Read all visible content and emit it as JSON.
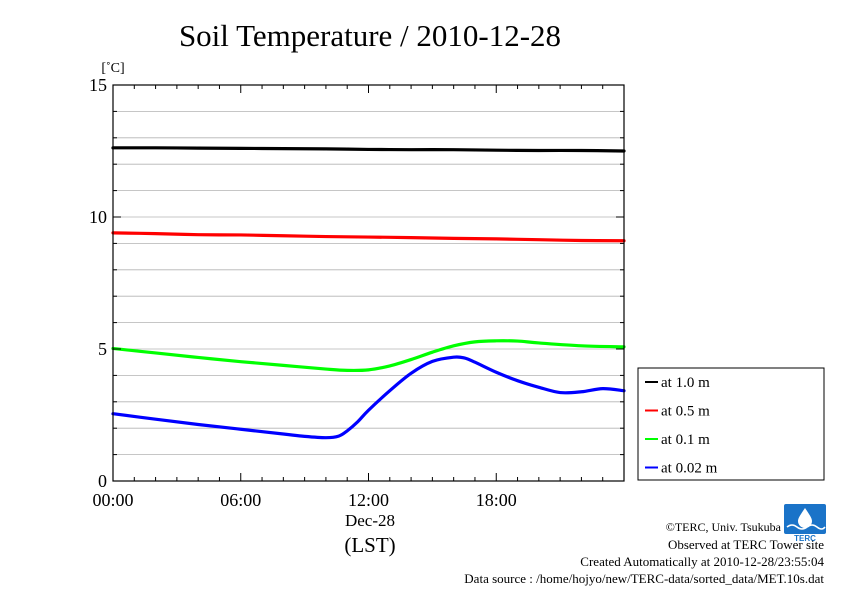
{
  "chart_data": {
    "type": "line",
    "title": "Soil Temperature / 2010-12-28",
    "ylabel": "[˚C]",
    "xlabel": "(LST)",
    "date_label": "Dec-28",
    "ylim": [
      0,
      15
    ],
    "xlim": [
      0,
      24
    ],
    "yticks": [
      0,
      5,
      10,
      15
    ],
    "xticks": [
      {
        "value": 0,
        "label": "00:00"
      },
      {
        "value": 6,
        "label": "06:00"
      },
      {
        "value": 12,
        "label": "12:00"
      },
      {
        "value": 18,
        "label": "18:00"
      }
    ],
    "grid": true,
    "legend_position": "right",
    "series": [
      {
        "name": "at 1.0 m",
        "color": "#000000",
        "x": [
          0,
          2,
          4,
          6,
          8,
          10,
          12,
          14,
          16,
          18,
          20,
          22,
          24
        ],
        "y": [
          12.62,
          12.62,
          12.61,
          12.6,
          12.59,
          12.58,
          12.56,
          12.55,
          12.55,
          12.53,
          12.52,
          12.52,
          12.5
        ]
      },
      {
        "name": "at 0.5 m",
        "color": "#ff0000",
        "x": [
          0,
          2,
          4,
          6,
          8,
          10,
          12,
          14,
          16,
          18,
          20,
          22,
          24
        ],
        "y": [
          9.4,
          9.37,
          9.33,
          9.32,
          9.29,
          9.26,
          9.24,
          9.22,
          9.19,
          9.17,
          9.14,
          9.11,
          9.1
        ]
      },
      {
        "name": "at 0.1 m",
        "color": "#00ff00",
        "x": [
          0,
          2,
          4,
          6,
          8,
          10,
          11,
          12,
          13,
          14,
          15,
          16,
          17,
          18,
          19,
          20,
          22,
          24
        ],
        "y": [
          5.02,
          4.85,
          4.68,
          4.52,
          4.38,
          4.24,
          4.19,
          4.21,
          4.36,
          4.6,
          4.88,
          5.12,
          5.27,
          5.31,
          5.3,
          5.23,
          5.12,
          5.08
        ]
      },
      {
        "name": "at 0.02 m",
        "color": "#0000ff",
        "x": [
          0,
          2,
          4,
          6,
          8,
          9,
          10,
          10.6,
          11,
          11.5,
          12,
          13,
          14,
          15,
          16,
          16.5,
          17,
          18,
          19,
          20,
          21,
          22,
          23,
          24
        ],
        "y": [
          2.55,
          2.34,
          2.14,
          1.96,
          1.78,
          1.69,
          1.64,
          1.7,
          1.9,
          2.25,
          2.68,
          3.42,
          4.08,
          4.53,
          4.69,
          4.66,
          4.5,
          4.12,
          3.8,
          3.55,
          3.35,
          3.38,
          3.5,
          3.42
        ]
      }
    ]
  },
  "footer": {
    "copyright": "©TERC, Univ. Tsukuba",
    "site": "Observed at TERC Tower site",
    "created": "Created Automatically at 2010-12-28/23:55:04",
    "source": "Data source : /home/hojyo/new/TERC-data/sorted_data/MET.10s.dat"
  },
  "logo": {
    "text": "TERC",
    "color": "#1a73c8"
  }
}
